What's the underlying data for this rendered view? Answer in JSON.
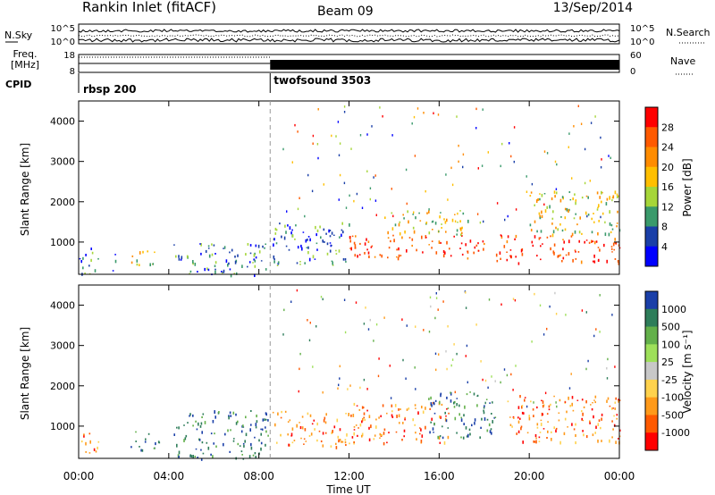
{
  "header": {
    "station": "Rankin Inlet (fitACF)",
    "beam": "Beam 09",
    "date": "13/Sep/2014"
  },
  "noise_panel": {
    "left_label": "N.Sky",
    "right_label": "N.Search",
    "left_ticks": [
      "10^5",
      "10^0"
    ],
    "right_ticks": [
      "10^5",
      "10^0"
    ]
  },
  "freq_panel": {
    "label_line1": "Freq.",
    "label_line2": "[MHz]",
    "right_label": "Nave",
    "left_ticks": [
      "18",
      "8"
    ],
    "right_ticks": [
      "60",
      "0"
    ]
  },
  "cpid": {
    "label": "CPID",
    "segments": [
      {
        "name": "rbsp 200",
        "start_hour": 0.0
      },
      {
        "name": "twofsound 3503",
        "start_hour": 8.5
      }
    ]
  },
  "chart_data": [
    {
      "type": "heatmap",
      "panel": "power",
      "ylabel": "Slant Range [km]",
      "colorbar_label": "Power [dB]",
      "colorbar_ticks": [
        "28",
        "24",
        "20",
        "16",
        "12",
        "8",
        "4"
      ],
      "colorbar_colors": [
        "#ff0000",
        "#ff5a00",
        "#ff8c00",
        "#ffbf00",
        "#a6d639",
        "#3a9a6b",
        "#1a3fa8",
        "#0000ff"
      ],
      "y_ticks": [
        "4000",
        "3000",
        "2000",
        "1000"
      ],
      "y_tick_values": [
        4000,
        3000,
        2000,
        1000
      ],
      "ylim": [
        200,
        4500
      ],
      "xlim": [
        0,
        24
      ],
      "scatter_bands": [
        {
          "x": [
            0,
            0.9
          ],
          "y": [
            200,
            950
          ],
          "level": "low"
        },
        {
          "x": [
            1.5,
            1.7
          ],
          "y": [
            300,
            900
          ],
          "level": "low"
        },
        {
          "x": [
            2.3,
            3.6
          ],
          "y": [
            400,
            800
          ],
          "level": "mid"
        },
        {
          "x": [
            4.2,
            8.4
          ],
          "y": [
            200,
            1000
          ],
          "level": "low"
        },
        {
          "x": [
            8.6,
            12.0
          ],
          "y": [
            400,
            1500
          ],
          "level": "low"
        },
        {
          "x": [
            12.0,
            18.0
          ],
          "y": [
            600,
            1200
          ],
          "level": "high"
        },
        {
          "x": [
            13.5,
            17.5
          ],
          "y": [
            1200,
            1800
          ],
          "level": "mid"
        },
        {
          "x": [
            18.5,
            24.0
          ],
          "y": [
            500,
            1200
          ],
          "level": "high"
        },
        {
          "x": [
            20.0,
            24.0
          ],
          "y": [
            1200,
            2300
          ],
          "level": "mid"
        }
      ]
    },
    {
      "type": "heatmap",
      "panel": "velocity",
      "ylabel": "Slant Range [km]",
      "colorbar_label": "Velocity [m s⁻¹]",
      "colorbar_ticks": [
        "1000",
        "500",
        "100",
        "25",
        "-25",
        "-100",
        "-500",
        "-1000"
      ],
      "colorbar_colors": [
        "#1a3fa8",
        "#2e7d5a",
        "#63b04a",
        "#9ee05a",
        "#c8c8c8",
        "#ffd24d",
        "#ff9a1a",
        "#ff5a00",
        "#ff0000"
      ],
      "y_ticks": [
        "4000",
        "3000",
        "2000",
        "1000"
      ],
      "y_tick_values": [
        4000,
        3000,
        2000,
        1000
      ],
      "ylim": [
        200,
        4500
      ],
      "xlim": [
        0,
        24
      ],
      "xlabel": "Time UT",
      "x_ticks": [
        "00:00",
        "04:00",
        "08:00",
        "12:00",
        "16:00",
        "20:00",
        "00:00"
      ],
      "x_tick_values": [
        0,
        4,
        8,
        12,
        16,
        20,
        24
      ],
      "scatter_bands": [
        {
          "x": [
            0,
            0.9
          ],
          "y": [
            300,
            900
          ],
          "level": "neg"
        },
        {
          "x": [
            2.3,
            3.6
          ],
          "y": [
            400,
            900
          ],
          "level": "pos"
        },
        {
          "x": [
            4.2,
            8.4
          ],
          "y": [
            200,
            1400
          ],
          "level": "pos"
        },
        {
          "x": [
            8.6,
            12.0
          ],
          "y": [
            500,
            1400
          ],
          "level": "neg"
        },
        {
          "x": [
            12.0,
            16.5
          ],
          "y": [
            600,
            1600
          ],
          "level": "neg"
        },
        {
          "x": [
            15.5,
            18.5
          ],
          "y": [
            700,
            1900
          ],
          "level": "pos"
        },
        {
          "x": [
            19.0,
            24.0
          ],
          "y": [
            600,
            1800
          ],
          "level": "neg"
        }
      ]
    }
  ]
}
